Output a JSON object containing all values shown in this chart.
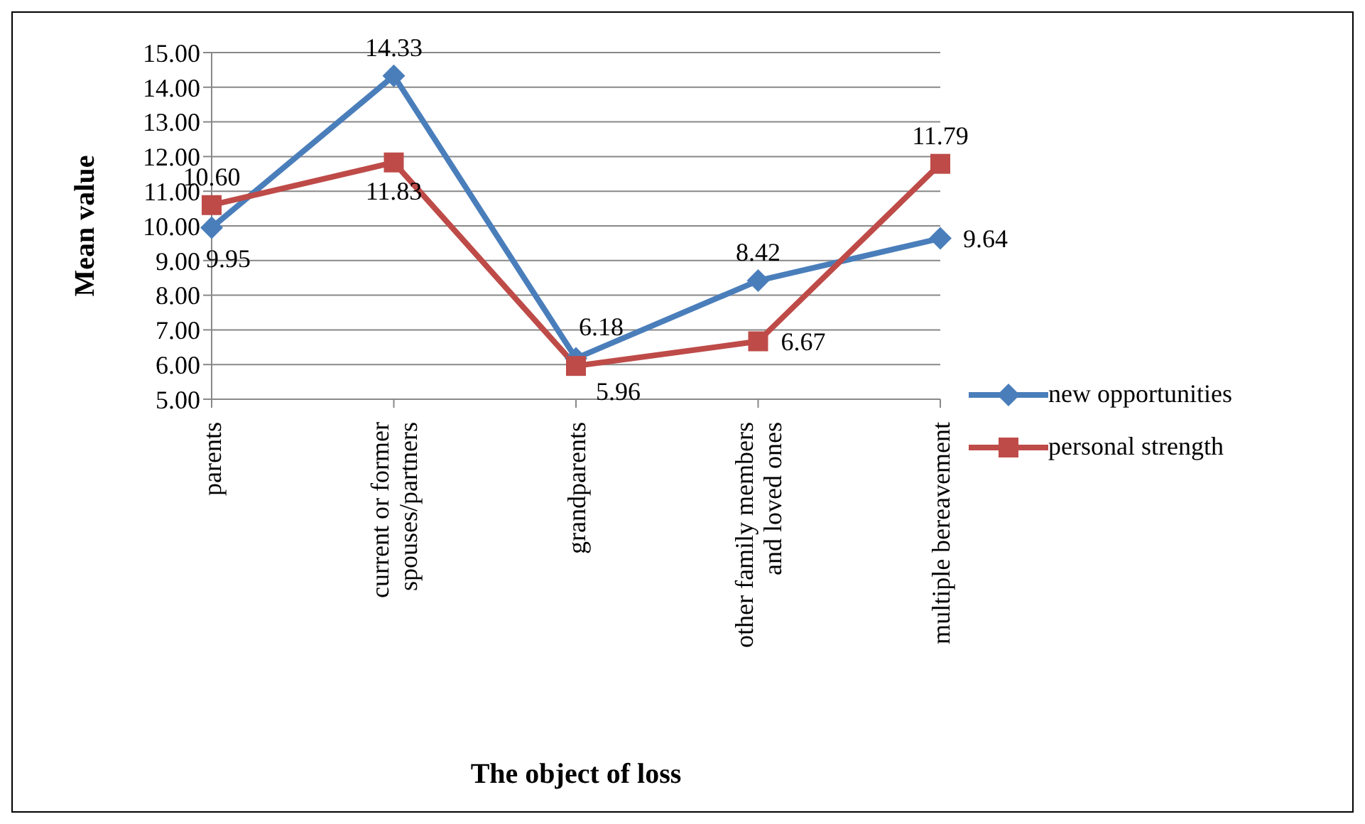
{
  "chart_data": {
    "type": "line",
    "ylabel": "Mean value",
    "xlabel": "The object of loss",
    "categories": [
      "parents",
      "current or former spouses/partners",
      "grandparents",
      "other family members and loved ones",
      "multiple bereavement"
    ],
    "series": [
      {
        "name": "new opportunities",
        "color": "#4a7ebb",
        "marker": "diamond",
        "values": [
          9.95,
          14.33,
          6.18,
          8.42,
          9.64
        ],
        "value_labels": [
          "9.95",
          "14.33",
          "6.18",
          "8.42",
          "9.64"
        ]
      },
      {
        "name": "personal strength",
        "color": "#be4b48",
        "marker": "square",
        "values": [
          10.6,
          11.83,
          5.96,
          6.67,
          11.79
        ],
        "value_labels": [
          "10.60",
          "11.83",
          "5.96",
          "6.67",
          "11.79"
        ]
      }
    ],
    "ylim": [
      5,
      15
    ],
    "yticks": [
      {
        "value": 5,
        "label": "5.00"
      },
      {
        "value": 6,
        "label": "6.00"
      },
      {
        "value": 7,
        "label": "7.00"
      },
      {
        "value": 8,
        "label": "8.00"
      },
      {
        "value": 9,
        "label": "9.00"
      },
      {
        "value": 10,
        "label": "10.00"
      },
      {
        "value": 11,
        "label": "11.00"
      },
      {
        "value": 12,
        "label": "12.00"
      },
      {
        "value": 13,
        "label": "13.00"
      },
      {
        "value": 14,
        "label": "14.00"
      },
      {
        "value": 15,
        "label": "15.00"
      }
    ],
    "grid": "y",
    "legend": "right",
    "line_style": "solid"
  }
}
